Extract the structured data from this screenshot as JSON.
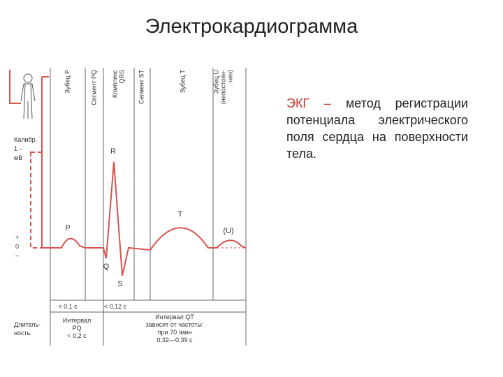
{
  "title": "Электрокардиограмма",
  "paragraph": {
    "term": "ЭКГ",
    "dash": "–",
    "text": "метод регистрации потенциала электрического поля сердца на поверхности тела."
  },
  "diagram": {
    "headers": [
      [
        "Зубец P"
      ],
      [
        "Сегмент PQ"
      ],
      [
        "Комплекс",
        "QRS"
      ],
      [
        "Сегмент ST"
      ],
      [
        "Зубец T"
      ],
      [
        "Зубец U",
        "(непостоян-",
        "нен)"
      ]
    ],
    "waves": [
      "P",
      "Q",
      "R",
      "S",
      "T",
      "(U)"
    ],
    "calibration": [
      "Калибр.",
      "1 –",
      "мВ"
    ],
    "polarity": [
      "+",
      "0",
      "–"
    ],
    "durations": [
      "< 0,1 с",
      "< 0,12 с"
    ],
    "duration_label": [
      "Длитель-",
      "ность"
    ],
    "interval_pq": [
      "Интервал",
      "PQ",
      "< 0,2 с"
    ],
    "interval_qt": [
      "Интервал QT",
      "зависит от частоты:",
      "при 70 /мин",
      "0,32—0,39 с"
    ]
  }
}
